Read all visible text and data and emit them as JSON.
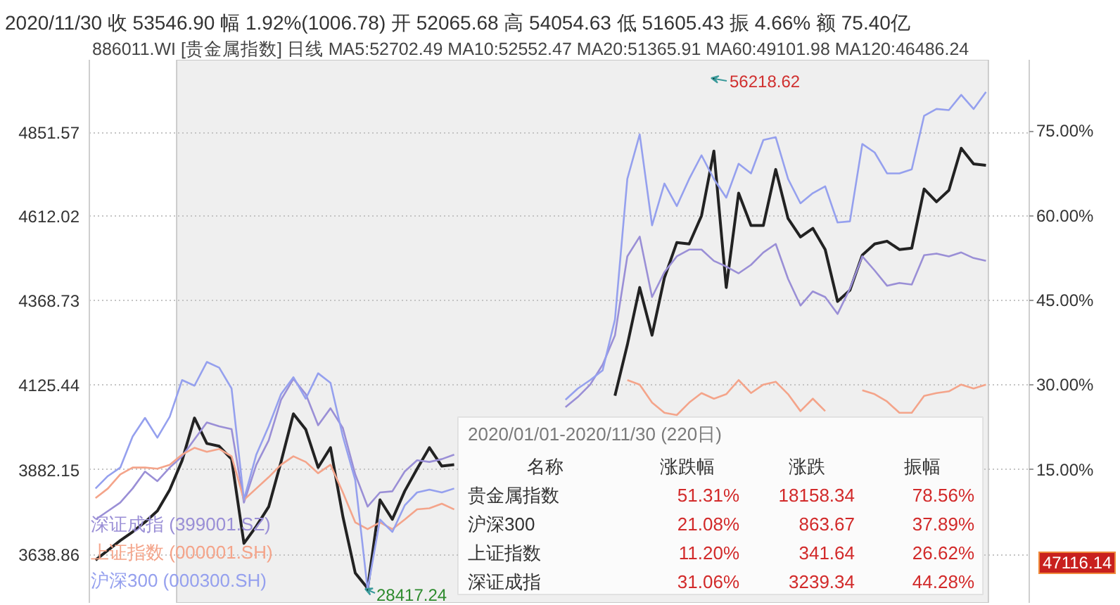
{
  "chart_data": {
    "type": "line",
    "title": "2020/11/30  收 53546.90  幅 1.92%(1006.78)  开 52065.68  高 54054.63  低 51605.43  振 4.66%  额 75.40亿",
    "subtitle": "886011.WI [贵金属指数] 日线 MA5:52702.49  MA10:52552.47  MA20:51365.91  MA60:49101.98  MA120:46486.24",
    "categories": [
      null,
      null,
      null,
      null,
      null,
      null,
      null,
      null,
      null,
      null,
      null,
      null,
      null,
      null,
      null,
      null,
      null,
      null,
      null,
      null,
      null,
      null,
      null,
      null,
      null,
      null,
      null,
      null,
      null,
      null,
      null,
      null,
      null,
      null,
      null,
      null,
      null,
      null,
      null,
      null,
      null,
      null,
      null,
      null,
      null,
      null,
      null,
      null,
      null,
      null,
      null,
      null,
      null,
      null,
      null,
      null,
      null,
      null,
      null,
      null,
      null,
      null,
      null,
      null,
      null,
      null,
      null,
      null,
      null,
      null,
      null,
      null,
      null,
      null,
      null,
      null
    ],
    "series": [
      {
        "color": "#222222",
        "values": [
          3623,
          3651,
          3679,
          3704,
          3732,
          3764,
          3825,
          3909,
          4031,
          3958,
          3950,
          3913,
          3671,
          3720,
          3776,
          3905,
          4043,
          3998,
          3889,
          3946,
          3748,
          3586,
          3542,
          3796,
          3740,
          3821,
          3885,
          3946,
          3893,
          3897,
          null,
          null,
          null,
          null,
          null,
          null,
          null,
          null,
          null,
          null,
          null,
          null,
          4095,
          4241,
          4406,
          4269,
          4434,
          4535,
          4531,
          4612,
          4798,
          4406,
          4677,
          4584,
          4584,
          4745,
          4604,
          4551,
          4576,
          4515,
          4366,
          4398,
          4499,
          4531,
          4539,
          4515,
          4519,
          4689,
          4652,
          4685,
          4806,
          4761,
          4757,
          null,
          null,
          null
        ]
      },
      {
        "name": "深证成指 (399001.SZ)",
        "color": "#9a8fd6",
        "axis": "y2",
        "values": [
          6.2,
          7.7,
          9.2,
          11.7,
          14.7,
          13.0,
          15.4,
          17.4,
          20.4,
          23.4,
          22.7,
          22.2,
          9.2,
          15.9,
          20.2,
          27.4,
          31.1,
          28.4,
          22.9,
          25.9,
          22.4,
          14.2,
          8.5,
          11.0,
          11.2,
          14.7,
          16.7,
          16.4,
          16.9,
          17.7,
          null,
          null,
          null,
          null,
          null,
          null,
          null,
          null,
          26.1,
          27.9,
          30.1,
          33.6,
          38.8,
          52.8,
          56.3,
          45.6,
          50.0,
          52.8,
          54.0,
          54.0,
          52.0,
          51.0,
          49.8,
          51.3,
          53.5,
          55.0,
          48.8,
          44.1,
          46.6,
          45.6,
          42.6,
          47.1,
          52.8,
          50.3,
          47.6,
          48.1,
          47.8,
          53.0,
          53.3,
          52.8,
          53.5,
          52.5,
          52.0,
          null,
          null,
          null
        ]
      },
      {
        "name": "上证指数 (000001.SH)",
        "color": "#f4a48a",
        "axis": "y2",
        "values": [
          10.0,
          11.7,
          14.2,
          15.4,
          15.4,
          15.2,
          15.9,
          17.7,
          18.9,
          18.2,
          18.7,
          17.4,
          9.7,
          11.7,
          13.7,
          15.9,
          17.4,
          16.4,
          14.4,
          15.9,
          11.0,
          5.7,
          4.5,
          5.7,
          4.5,
          6.2,
          8.0,
          8.2,
          9.0,
          8.0,
          null,
          null,
          null,
          null,
          null,
          null,
          null,
          null,
          null,
          null,
          null,
          null,
          null,
          30.9,
          30.1,
          26.9,
          25.1,
          24.7,
          26.9,
          28.6,
          27.6,
          28.4,
          30.9,
          28.6,
          30.1,
          30.6,
          28.4,
          25.4,
          27.6,
          25.4,
          null,
          null,
          29.1,
          28.4,
          27.1,
          25.1,
          25.1,
          28.1,
          28.6,
          28.9,
          30.1,
          29.4,
          30.1,
          null,
          null,
          null
        ]
      },
      {
        "name": "沪深300 (000300.SH)",
        "color": "#95a0ee",
        "axis": "y2",
        "values": [
          11.7,
          13.9,
          15.4,
          20.9,
          24.2,
          20.7,
          24.4,
          30.9,
          29.9,
          34.1,
          33.1,
          29.4,
          9.7,
          17.7,
          22.7,
          28.4,
          31.4,
          27.6,
          32.1,
          30.4,
          20.9,
          13.2,
          -6.2,
          6.2,
          4.0,
          8.7,
          11.0,
          11.5,
          11.0,
          11.7,
          null,
          null,
          null,
          null,
          null,
          null,
          null,
          null,
          27.4,
          29.4,
          30.9,
          32.6,
          41.6,
          66.5,
          74.4,
          58.3,
          65.7,
          61.7,
          66.5,
          70.7,
          66.5,
          63.2,
          69.2,
          67.5,
          73.4,
          73.9,
          66.5,
          62.2,
          64.0,
          65.2,
          58.8,
          59.0,
          72.7,
          71.2,
          67.5,
          67.5,
          68.2,
          77.7,
          78.9,
          78.7,
          81.4,
          78.9,
          81.9,
          null,
          null,
          null
        ]
      }
    ],
    "ylim": [
      3500,
      5060
    ],
    "yticks": [
      3638.86,
      3882.15,
      4125.44,
      4368.73,
      4612.02,
      4851.57
    ],
    "y2lim": [
      -8.56,
      87.61
    ],
    "y2ticks": [
      {
        "value": 15,
        "label": "15.00%"
      },
      {
        "value": 30,
        "label": "30.00%"
      },
      {
        "value": 45,
        "label": "45.00%"
      },
      {
        "value": 60,
        "label": "60.00%"
      },
      {
        "value": 75,
        "label": "75.00%"
      }
    ],
    "grid": "y",
    "legend": "bottom left",
    "annotations": [
      "56218.62",
      "28417.24",
      "47116.14",
      "2020/01/01-2020/11/30 (220日)",
      "名称",
      "涨跌幅",
      "涨跌",
      "振幅",
      "贵金属指数",
      "51.31%",
      "18158.34",
      "78.56%",
      "沪深300",
      "21.08%",
      "863.67",
      "37.89%",
      "上证指数",
      "11.20%",
      "341.64",
      "26.62%",
      "深证成指",
      "31.06%",
      "3239.34",
      "44.28%"
    ]
  }
}
